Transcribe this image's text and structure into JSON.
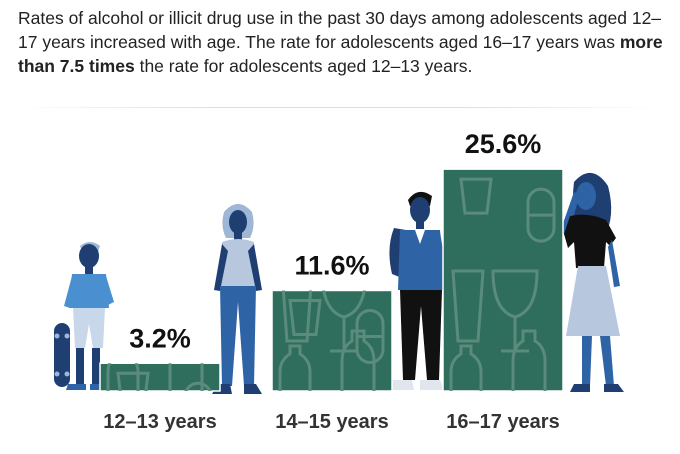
{
  "caption": {
    "part1": "Rates of alcohol or illicit drug use in the past 30 days among adolescents aged 12–17 years increased with age. The rate for adolescents aged 16–17 years was ",
    "emphasis": "more than 7.5 times",
    "part2": " the rate for adolescents aged 12–13 years."
  },
  "colors": {
    "bar_fill": "#2f6e5c",
    "bar_stroke": "#ffffff",
    "icon_fill": "#5a8b7c",
    "figure_dark": "#1f3f73",
    "figure_mid": "#2e63a6",
    "figure_light": "#9fb7d6"
  },
  "chart_data": {
    "type": "bar",
    "categories": [
      "12–13 years",
      "14–15 years",
      "16–17 years"
    ],
    "values": [
      3.2,
      11.6,
      25.6
    ],
    "value_labels": [
      "3.2%",
      "11.6%",
      "25.6%"
    ],
    "ylim": [
      0,
      27
    ],
    "grid": false,
    "legend": "none"
  }
}
